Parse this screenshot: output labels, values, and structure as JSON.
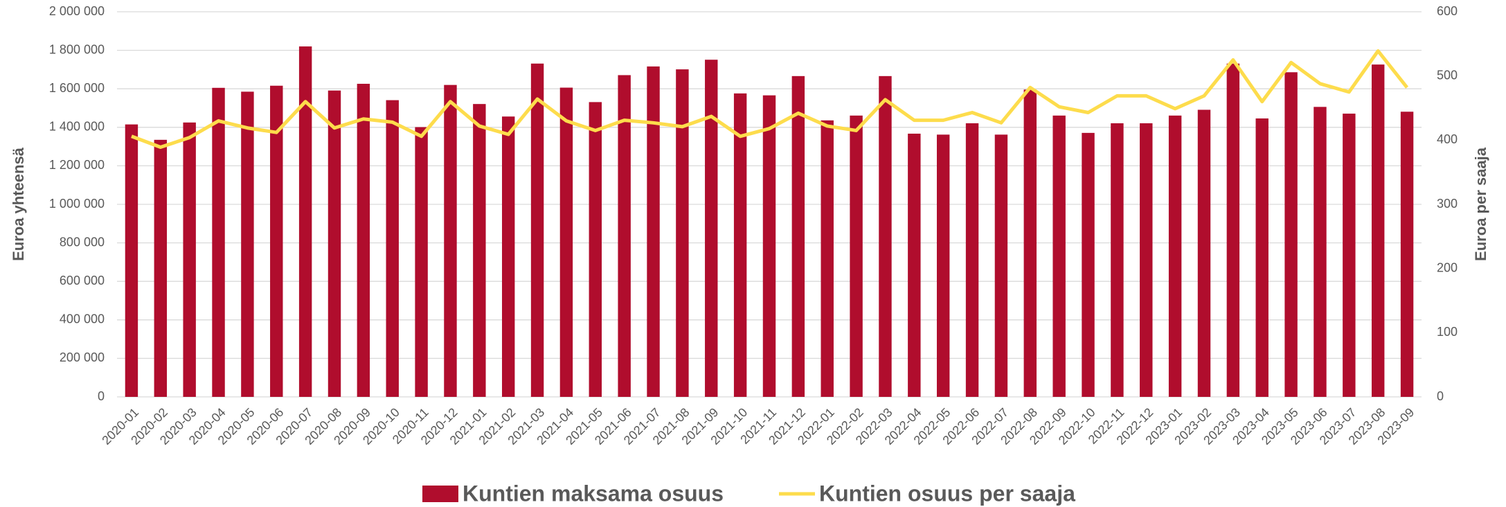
{
  "chart_data": {
    "type": "bar-line",
    "y_label": "Euroa yhteensä",
    "y2_label": "Euroa per saaja",
    "categories": [
      "2020-01",
      "2020-02",
      "2020-03",
      "2020-04",
      "2020-05",
      "2020-06",
      "2020-07",
      "2020-08",
      "2020-09",
      "2020-10",
      "2020-11",
      "2020-12",
      "2021-01",
      "2021-02",
      "2021-03",
      "2021-04",
      "2021-05",
      "2021-06",
      "2021-07",
      "2021-08",
      "2021-09",
      "2021-10",
      "2021-11",
      "2021-12",
      "2022-01",
      "2022-02",
      "2022-03",
      "2022-04",
      "2022-05",
      "2022-06",
      "2022-07",
      "2022-08",
      "2022-09",
      "2022-10",
      "2022-11",
      "2022-12",
      "2023-01",
      "2023-02",
      "2023-03",
      "2023-04",
      "2023-05",
      "2023-06",
      "2023-07",
      "2023-08",
      "2023-09"
    ],
    "series": [
      {
        "name": "Kuntien maksama osuus",
        "type": "bar",
        "color": "#b00d2d",
        "values": [
          1415000,
          1335000,
          1425000,
          1605000,
          1585000,
          1616000,
          1820000,
          1591000,
          1626000,
          1541000,
          1401000,
          1620000,
          1521000,
          1456000,
          1731000,
          1606000,
          1531000,
          1671000,
          1716000,
          1701000,
          1751000,
          1576000,
          1566000,
          1666000,
          1436000,
          1461000,
          1666000,
          1367000,
          1362000,
          1421000,
          1362000,
          1596000,
          1461000,
          1371000,
          1421000,
          1421000,
          1461000,
          1491000,
          1731000,
          1446000,
          1686000,
          1506000,
          1471000,
          1726000,
          1481000
        ]
      },
      {
        "name": "Kuntien osuus per saaja",
        "type": "line",
        "axis": "y2",
        "color": "#fddc4c",
        "values": [
          406,
          389,
          404,
          430,
          419,
          412,
          460,
          419,
          433,
          428,
          406,
          460,
          422,
          409,
          464,
          430,
          415,
          431,
          427,
          421,
          437,
          406,
          418,
          442,
          422,
          415,
          463,
          431,
          431,
          443,
          427,
          482,
          452,
          443,
          469,
          469,
          449,
          469,
          525,
          460,
          521,
          488,
          475,
          539,
          482
        ]
      }
    ],
    "ylim": [
      0,
      2000000
    ],
    "yticks": [
      0,
      {
        "value": 200000,
        "label": "200 000"
      },
      {
        "value": 400000,
        "label": "400 000"
      },
      {
        "value": 600000,
        "label": "600 000"
      },
      {
        "value": 800000,
        "label": "800 000"
      },
      {
        "value": 1000000,
        "label": "1 000 000"
      },
      {
        "value": 1200000,
        "label": "1 200 000"
      },
      {
        "value": 1400000,
        "label": "1 400 000"
      },
      {
        "value": 1600000,
        "label": "1 600 000"
      },
      {
        "value": 1800000,
        "label": "1 800 000"
      },
      {
        "value": 2000000,
        "label": "2 000 000"
      }
    ],
    "y2lim": [
      0,
      600
    ],
    "y2ticks": [
      0,
      100,
      200,
      300,
      400,
      500,
      600
    ],
    "grid": true,
    "legend": "bottom"
  }
}
